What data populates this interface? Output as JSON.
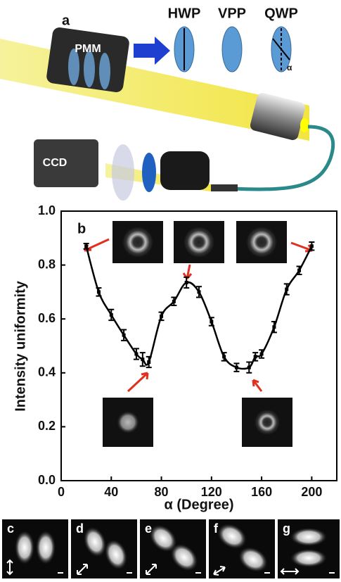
{
  "diagram": {
    "panel_label": "a",
    "labels": [
      "PMM",
      "HWP",
      "VPP",
      "QWP",
      "α",
      "CCD"
    ]
  },
  "chart_data": {
    "type": "line",
    "panel_label": "b",
    "x_label": "α (Degree)",
    "y_label": "Intensity uniformity",
    "x": [
      20,
      30,
      40,
      50,
      60,
      65,
      70,
      80,
      90,
      100,
      110,
      120,
      130,
      140,
      150,
      155,
      160,
      170,
      180,
      190,
      200
    ],
    "values": [
      0.87,
      0.7,
      0.615,
      0.54,
      0.47,
      0.45,
      0.44,
      0.61,
      0.665,
      0.735,
      0.7,
      0.59,
      0.46,
      0.42,
      0.42,
      0.46,
      0.47,
      0.57,
      0.71,
      0.78,
      0.87
    ],
    "errors": [
      0.01,
      0.015,
      0.02,
      0.02,
      0.02,
      0.025,
      0.02,
      0.015,
      0.015,
      0.02,
      0.02,
      0.015,
      0.015,
      0.015,
      0.02,
      0.015,
      0.015,
      0.02,
      0.02,
      0.015,
      0.015
    ],
    "color": "#000000",
    "xlim": [
      0,
      220
    ],
    "xticks": [
      0,
      40,
      80,
      120,
      160,
      200
    ],
    "ylim": [
      0,
      1
    ],
    "yticks": [
      {
        "value": 0,
        "label": "0.0"
      },
      0.2,
      0.4,
      0.6,
      0.8,
      {
        "value": 1,
        "label": "1.0"
      }
    ]
  },
  "panels": [
    "c",
    "d",
    "e",
    "f",
    "g"
  ]
}
